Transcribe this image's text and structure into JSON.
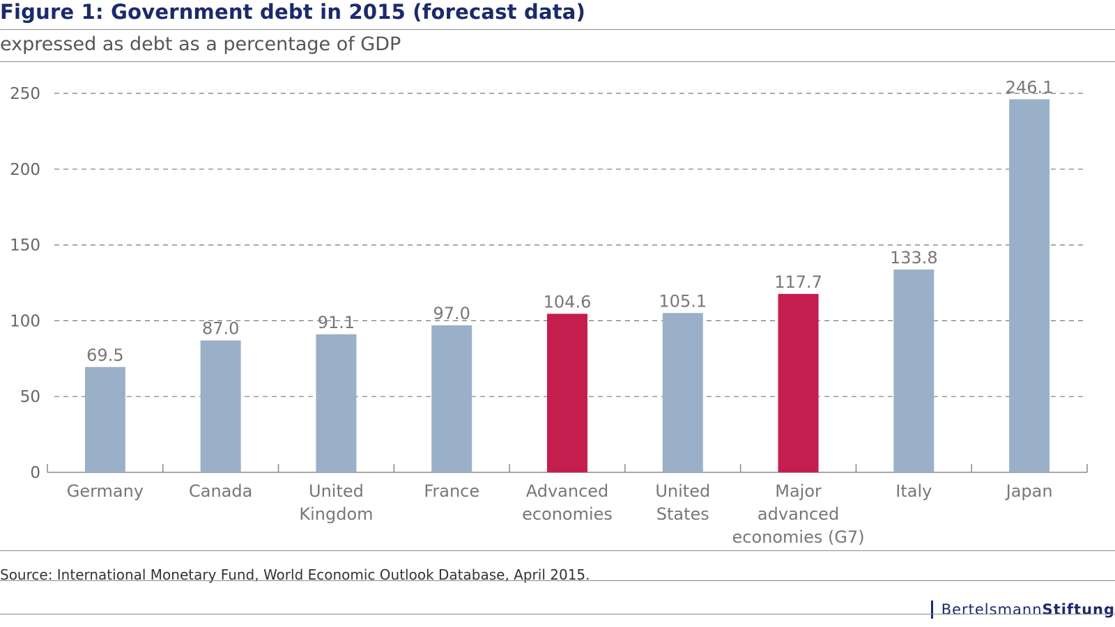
{
  "figure": {
    "title": "Figure 1: Government debt in 2015 (forecast data)",
    "subtitle": "expressed as debt as a percentage of GDP",
    "source": "Source: International Monetary Fund, World Economic Outlook Database, April 2015.",
    "logo_part1": "Bertelsmann",
    "logo_part2": "Stiftung"
  },
  "colors": {
    "default_bar": "#9ab0c9",
    "highlight_bar": "#c41e4e",
    "title": "#1b2a6b"
  },
  "chart_data": {
    "type": "bar",
    "title": "Figure 1: Government debt in 2015 (forecast data)",
    "subtitle": "expressed as debt as a percentage of GDP",
    "xlabel": "",
    "ylabel": "",
    "ylim": [
      0,
      250
    ],
    "yticks": [
      0,
      50,
      100,
      150,
      200,
      250
    ],
    "grid": "horizontal dashed",
    "categories": [
      [
        "Germany"
      ],
      [
        "Canada"
      ],
      [
        "United",
        "Kingdom"
      ],
      [
        "France"
      ],
      [
        "Advanced",
        "economies"
      ],
      [
        "United",
        "States"
      ],
      [
        "Major",
        "advanced",
        "economies (G7)"
      ],
      [
        "Italy"
      ],
      [
        "Japan"
      ]
    ],
    "values": [
      69.5,
      87.0,
      91.1,
      97.0,
      104.6,
      105.1,
      117.7,
      133.8,
      246.1
    ],
    "value_labels": [
      "69.5",
      "87.0",
      "91.1",
      "97.0",
      "104.6",
      "105.1",
      "117.7",
      "133.8",
      "246.1"
    ],
    "highlighted": [
      false,
      false,
      false,
      false,
      true,
      false,
      true,
      false,
      false
    ]
  }
}
